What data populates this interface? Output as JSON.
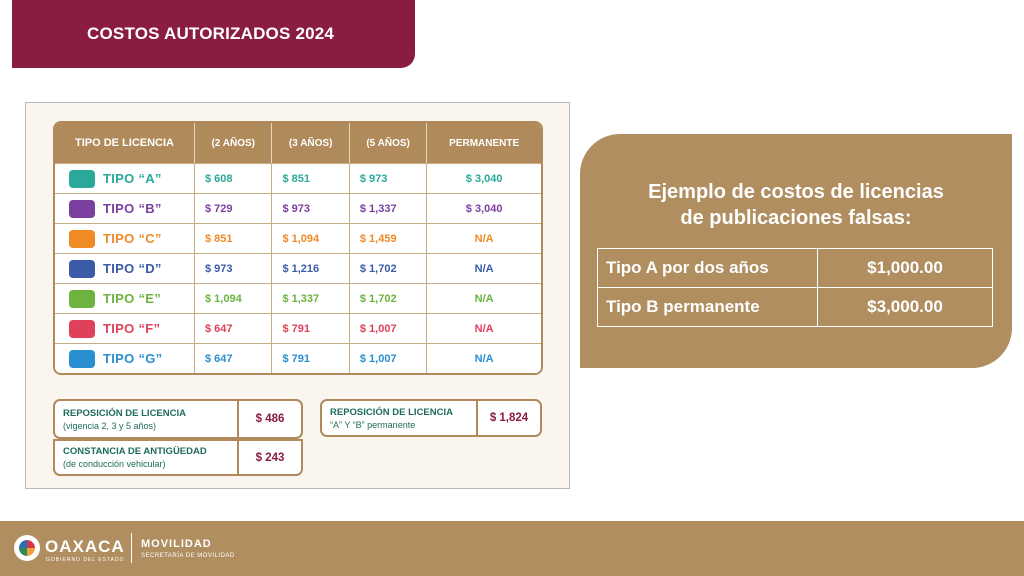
{
  "header": {
    "title": "COSTOS AUTORIZADOS 2024"
  },
  "fees_table": {
    "headers": [
      "TIPO DE LICENCIA",
      "(2 AÑOS)",
      "(3 AÑOS)",
      "(5 AÑOS)",
      "PERMANENTE"
    ],
    "rows": [
      {
        "type": "TIPO “A”",
        "icon": "motorcycle-icon",
        "color": "#2aa89a",
        "values": [
          "$ 608",
          "$ 851",
          "$ 973",
          "$ 3,040"
        ]
      },
      {
        "type": "TIPO “B”",
        "icon": "car-icon",
        "color": "#7b3fa0",
        "values": [
          "$ 729",
          "$ 973",
          "$ 1,337",
          "$ 3,040"
        ]
      },
      {
        "type": "TIPO “C”",
        "icon": "taxi-icon",
        "color": "#f08a24",
        "values": [
          "$ 851",
          "$ 1,094",
          "$ 1,459",
          "N/A"
        ]
      },
      {
        "type": "TIPO “D”",
        "icon": "truck-icon",
        "color": "#3b5ba9",
        "values": [
          "$ 973",
          "$ 1,216",
          "$ 1,702",
          "N/A"
        ]
      },
      {
        "type": "TIPO “E”",
        "icon": "bus-icon",
        "color": "#6cb33f",
        "values": [
          "$ 1,094",
          "$ 1,337",
          "$ 1,702",
          "N/A"
        ]
      },
      {
        "type": "TIPO “F”",
        "icon": "wheelchair-icon",
        "color": "#e0405a",
        "values": [
          "$ 647",
          "$ 791",
          "$ 1,007",
          "N/A"
        ]
      },
      {
        "type": "TIPO “G”",
        "icon": "walking-icon",
        "color": "#2a8fd0",
        "values": [
          "$ 647",
          "$ 791",
          "$ 1,007",
          "N/A"
        ]
      }
    ]
  },
  "extra_fees": {
    "replacement": {
      "title": "REPOSICIÓN DE LICENCIA",
      "sub": "(vigencia 2, 3 y 5 años)",
      "amount": "$ 486"
    },
    "seniority": {
      "title": "CONSTANCIA DE ANTIGÜEDAD",
      "sub": "(de conducción vehicular)",
      "amount": "$ 243"
    },
    "replacement_permanent": {
      "title": "REPOSICIÓN DE LICENCIA",
      "sub": "“A” Y “B” permanente",
      "amount": "$ 1,824"
    }
  },
  "example": {
    "title_line1": "Ejemplo de costos de licencias",
    "title_line2": "de publicaciones falsas:",
    "rows": [
      {
        "label": "Tipo A por dos años",
        "value": "$1,000.00"
      },
      {
        "label": "Tipo B permanente",
        "value": "$3,000.00"
      }
    ]
  },
  "footer": {
    "brand": "OAXACA",
    "brand_sub": "GOBIERNO DEL ESTADO",
    "dept": "MOVILIDAD",
    "dept_sub": "SECRETARÍA DE MOVILIDAD"
  },
  "colors": {
    "maroon": "#8a1c3f",
    "gold": "#b08e60",
    "teal_text": "#1e6b5c"
  }
}
